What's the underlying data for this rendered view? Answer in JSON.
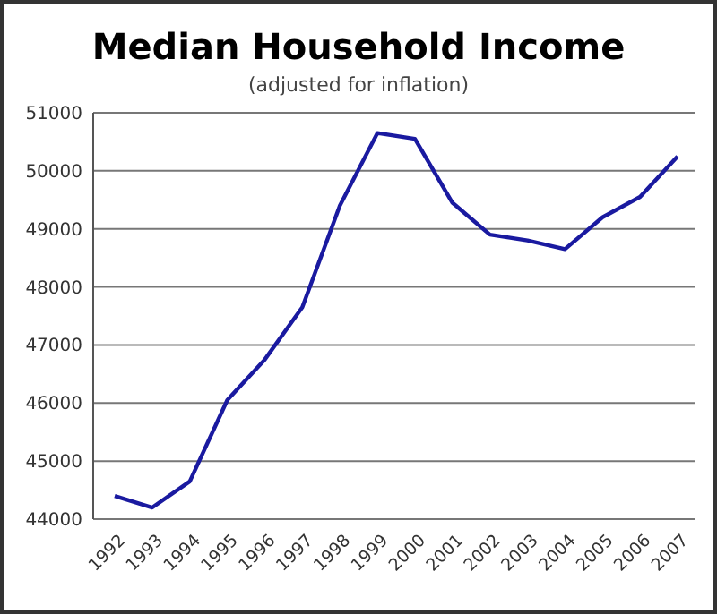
{
  "chart_data": {
    "type": "line",
    "title": "Median Household Income",
    "subtitle": "(adjusted for inflation)",
    "categories": [
      "1992",
      "1993",
      "1994",
      "1995",
      "1996",
      "1997",
      "1998",
      "1999",
      "2000",
      "2001",
      "2002",
      "2003",
      "2004",
      "2005",
      "2006",
      "2007"
    ],
    "series": [
      {
        "color": "#1a1aa0",
        "values": [
          44400,
          44200,
          44650,
          46050,
          46750,
          47650,
          49400,
          50650,
          50550,
          49450,
          48900,
          48800,
          48650,
          49200,
          49550,
          50250
        ]
      }
    ],
    "ylim": [
      44000,
      51000
    ],
    "yticks": [
      44000,
      45000,
      46000,
      47000,
      48000,
      49000,
      50000,
      51000
    ],
    "grid": "y",
    "marker": "none",
    "line_style": "solid"
  }
}
